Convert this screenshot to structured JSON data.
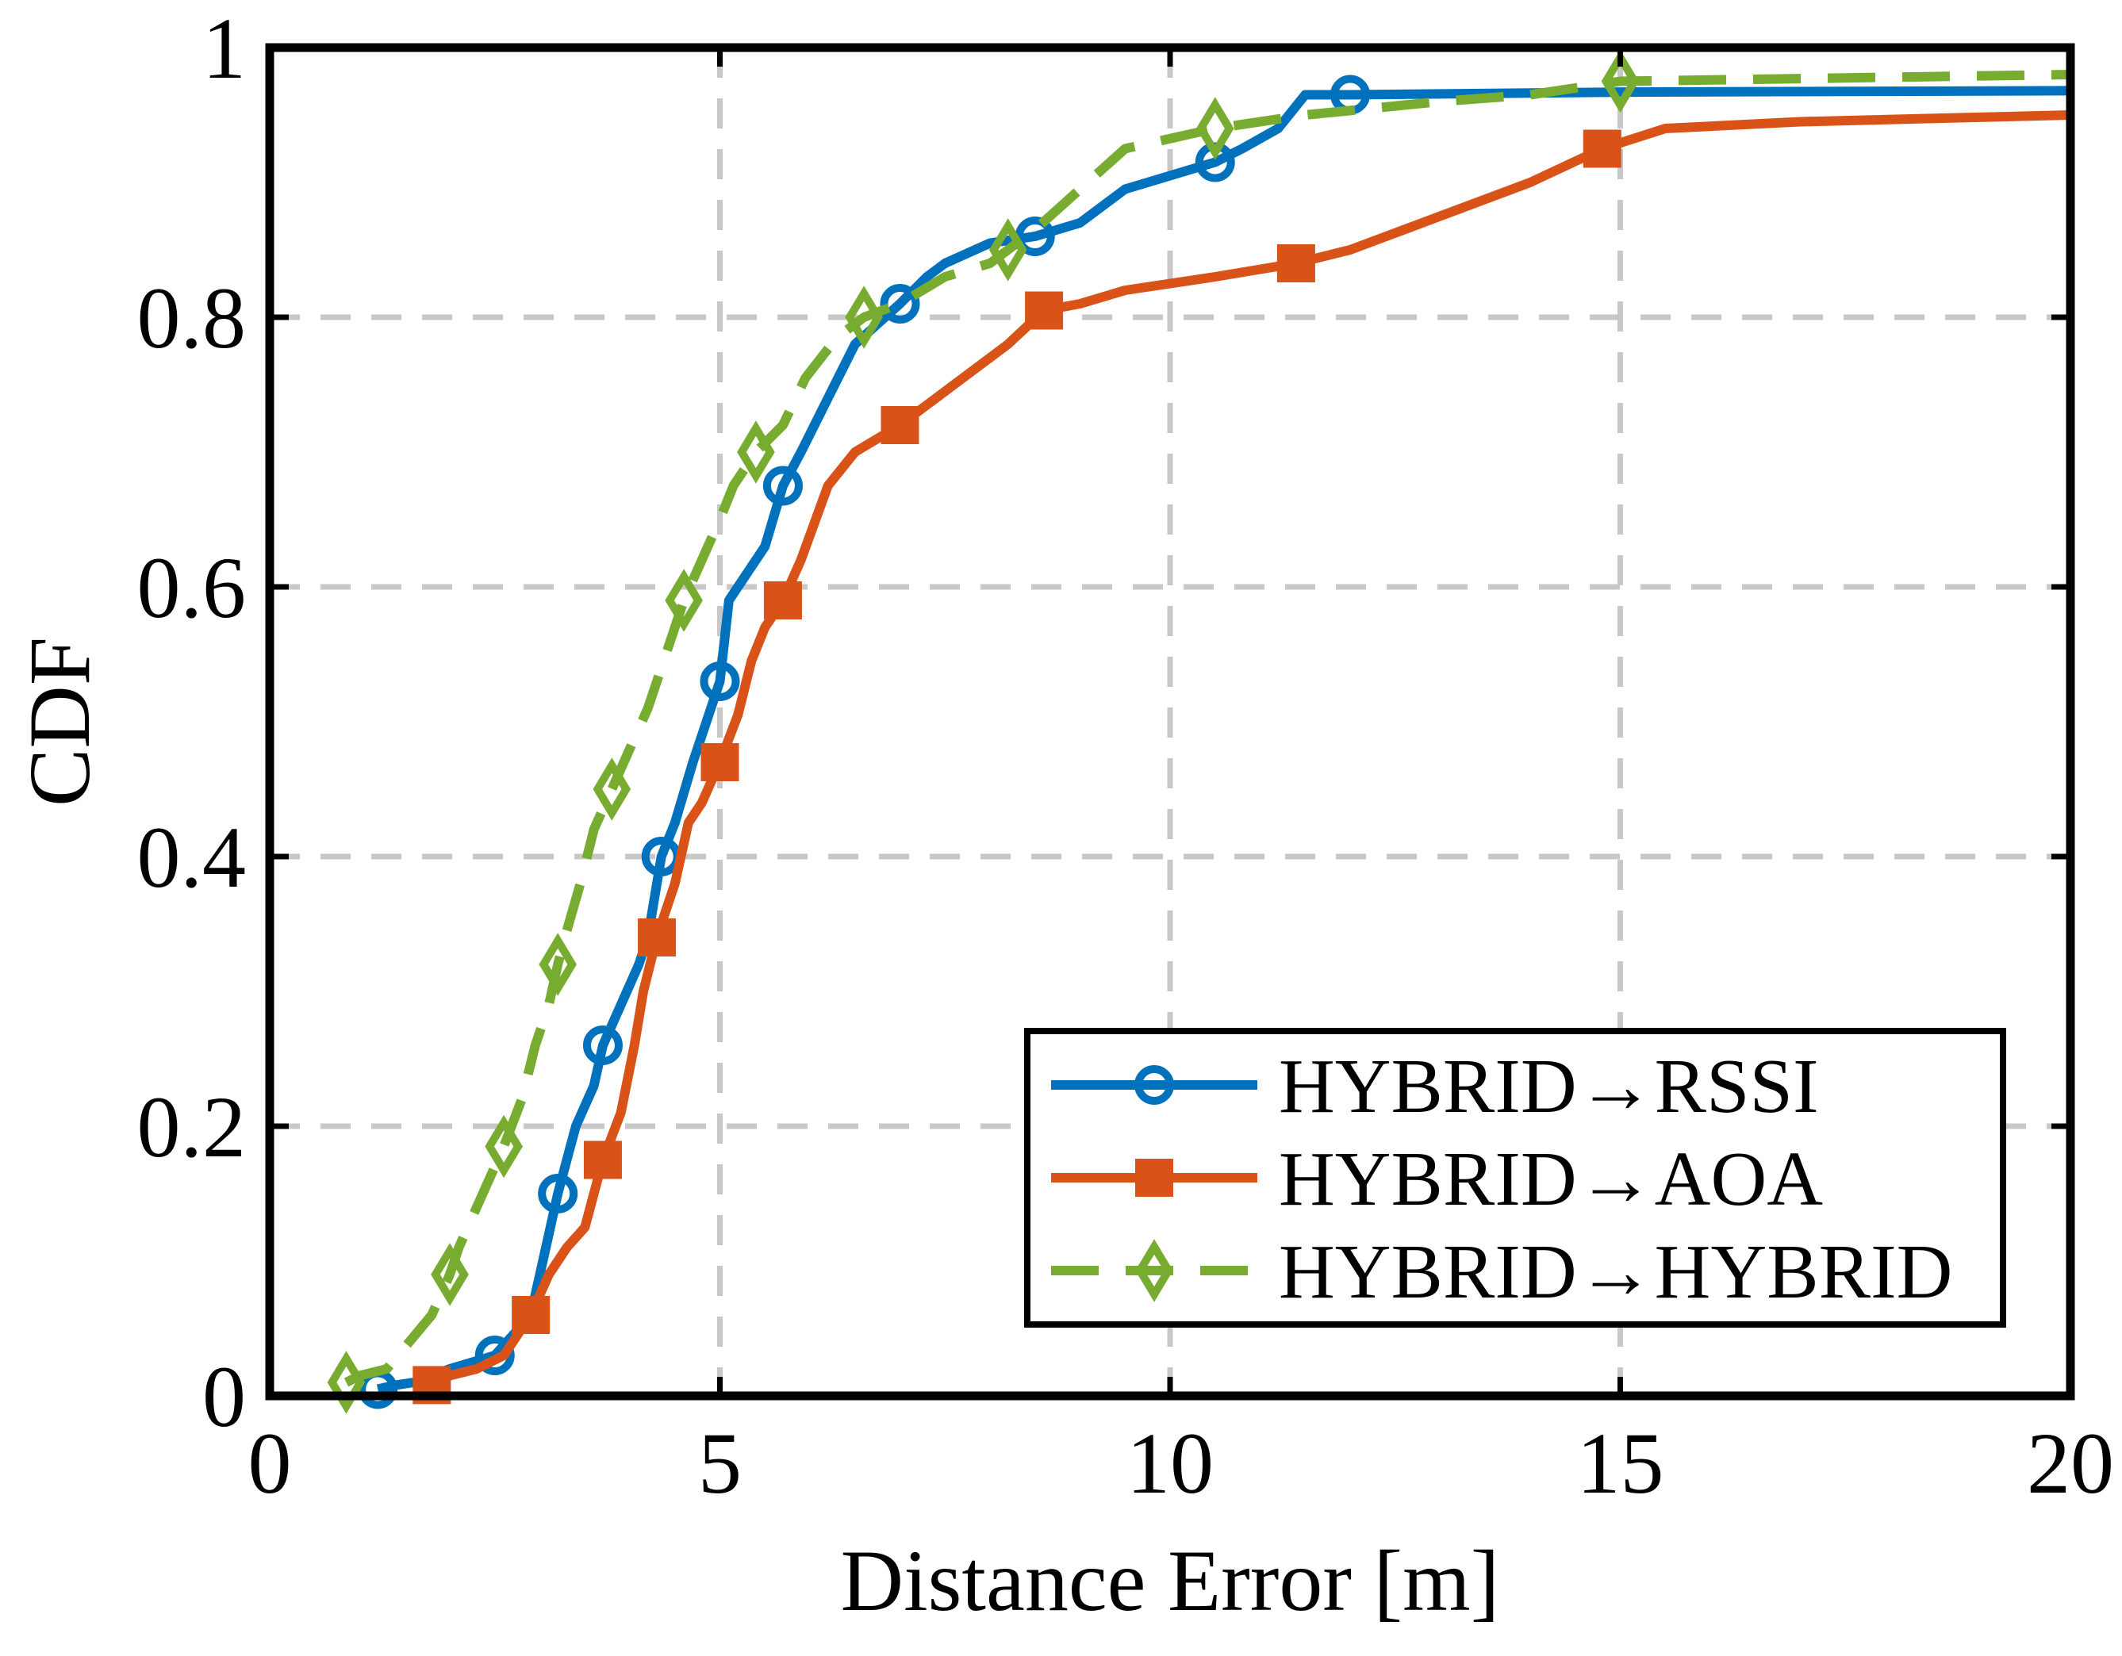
{
  "chart_data": {
    "type": "line",
    "title": "",
    "xlabel": "Distance Error [m]",
    "ylabel": "CDF",
    "xlim": [
      0,
      20
    ],
    "ylim": [
      0,
      1
    ],
    "xticks": [
      0,
      5,
      10,
      15,
      20
    ],
    "yticks": [
      0,
      0.2,
      0.4,
      0.6,
      0.8,
      1
    ],
    "xtick_labels": [
      "0",
      "5",
      "10",
      "15",
      "20"
    ],
    "ytick_labels": [
      "0",
      "0.2",
      "0.4",
      "0.6",
      "0.8",
      "1"
    ],
    "grid": true,
    "legend_position": "bottom-right",
    "series": [
      {
        "name": "HYBRID→RSSI",
        "color": "#0072BD",
        "dash": "solid",
        "marker": "circle",
        "x": [
          1.2,
          1.4,
          1.6,
          2.0,
          2.5,
          2.9,
          3.0,
          3.1,
          3.2,
          3.3,
          3.4,
          3.6,
          3.7,
          3.9,
          4.1,
          4.2,
          4.35,
          4.5,
          4.7,
          4.9,
          5.0,
          5.1,
          5.2,
          5.5,
          5.7,
          5.9,
          6.2,
          6.5,
          7.0,
          7.3,
          7.5,
          8.0,
          8.5,
          9.0,
          9.5,
          10.0,
          10.5,
          10.8,
          11.2,
          11.5,
          12.0,
          15.0,
          20.0
        ],
        "y": [
          0.005,
          0.008,
          0.01,
          0.02,
          0.03,
          0.06,
          0.09,
          0.12,
          0.15,
          0.175,
          0.2,
          0.23,
          0.26,
          0.29,
          0.32,
          0.34,
          0.4,
          0.425,
          0.47,
          0.51,
          0.53,
          0.59,
          0.6,
          0.63,
          0.675,
          0.7,
          0.74,
          0.78,
          0.81,
          0.83,
          0.84,
          0.855,
          0.86,
          0.87,
          0.895,
          0.905,
          0.915,
          0.925,
          0.94,
          0.965,
          0.965,
          0.967,
          0.968
        ]
      },
      {
        "name": "HYBRID→AOA",
        "color": "#D95319",
        "dash": "solid",
        "marker": "square",
        "x": [
          1.8,
          2.0,
          2.3,
          2.6,
          2.9,
          3.1,
          3.3,
          3.5,
          3.7,
          3.9,
          4.05,
          4.15,
          4.3,
          4.5,
          4.65,
          4.8,
          5.0,
          5.2,
          5.35,
          5.5,
          5.7,
          5.9,
          6.2,
          6.5,
          7.0,
          7.3,
          7.8,
          8.2,
          8.6,
          9.0,
          9.5,
          10.5,
          11.4,
          12.0,
          13.0,
          14.0,
          14.8,
          15.5,
          17.0,
          20.0
        ],
        "y": [
          0.008,
          0.015,
          0.02,
          0.03,
          0.06,
          0.09,
          0.11,
          0.125,
          0.175,
          0.21,
          0.26,
          0.3,
          0.34,
          0.38,
          0.425,
          0.44,
          0.47,
          0.505,
          0.545,
          0.57,
          0.59,
          0.62,
          0.675,
          0.7,
          0.72,
          0.735,
          0.76,
          0.78,
          0.805,
          0.81,
          0.82,
          0.83,
          0.84,
          0.85,
          0.875,
          0.9,
          0.925,
          0.94,
          0.945,
          0.95
        ]
      },
      {
        "name": "HYBRID→HYBRID",
        "color": "#77AC30",
        "dash": "dashed",
        "marker": "diamond",
        "x": [
          0.85,
          1.0,
          1.3,
          1.8,
          2.0,
          2.1,
          2.3,
          2.5,
          2.6,
          2.8,
          2.95,
          3.1,
          3.2,
          3.3,
          3.45,
          3.6,
          3.8,
          4.0,
          4.2,
          4.4,
          4.6,
          4.8,
          5.0,
          5.15,
          5.4,
          5.7,
          5.95,
          6.3,
          6.6,
          7.0,
          7.5,
          8.0,
          8.2,
          8.5,
          9.0,
          9.5,
          10.5,
          11.5,
          13.0,
          14.0,
          15.0,
          20.0
        ],
        "y": [
          0.01,
          0.015,
          0.02,
          0.06,
          0.09,
          0.11,
          0.14,
          0.17,
          0.185,
          0.22,
          0.26,
          0.29,
          0.32,
          0.345,
          0.38,
          0.42,
          0.45,
          0.48,
          0.51,
          0.55,
          0.59,
          0.62,
          0.65,
          0.675,
          0.7,
          0.72,
          0.755,
          0.785,
          0.8,
          0.81,
          0.83,
          0.84,
          0.85,
          0.865,
          0.895,
          0.925,
          0.94,
          0.95,
          0.96,
          0.965,
          0.975,
          0.98
        ]
      }
    ]
  }
}
